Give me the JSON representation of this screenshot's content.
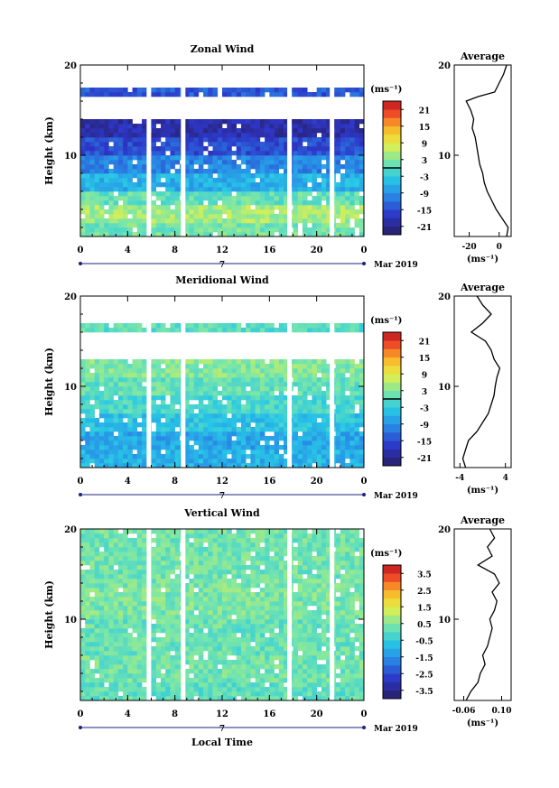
{
  "chart_data": [
    {
      "type": "heatmap",
      "title": "Zonal Wind",
      "ylabel": "Height (km)",
      "xticks": [
        "0",
        "4",
        "8",
        "12",
        "16",
        "20",
        "0"
      ],
      "yticks": [
        "20",
        "10"
      ],
      "xlim": [
        0,
        24
      ],
      "ylim": [
        1,
        20
      ],
      "date_label": "7",
      "month_label": "Mar 2019",
      "colorbar": {
        "unit": "(ms⁻¹)",
        "ticks": [
          "21",
          "15",
          "9",
          "3",
          "-3",
          "-9",
          "-15",
          "-21"
        ],
        "range": [
          -24,
          24
        ],
        "zero_line": true
      },
      "bands": [
        {
          "from": 1,
          "to": 2.5,
          "value": 2
        },
        {
          "from": 2.5,
          "to": 4.5,
          "value": 5
        },
        {
          "from": 4.5,
          "to": 6,
          "value": 1
        },
        {
          "from": 6,
          "to": 8,
          "value": -6
        },
        {
          "from": 8,
          "to": 10,
          "value": -10
        },
        {
          "from": 10,
          "to": 12,
          "value": -15
        },
        {
          "from": 12,
          "to": 14,
          "value": -19
        },
        {
          "from": 16.5,
          "to": 17.5,
          "value": -14
        }
      ],
      "gaps_x": [
        5.8,
        8.7,
        17.7,
        21.3
      ],
      "average": {
        "title": "Average",
        "xticks": [
          "-20",
          "0"
        ],
        "xlim": [
          -30,
          8
        ],
        "xlabel": "(ms⁻¹)",
        "yticks": [
          "20",
          "10"
        ],
        "profile": [
          [
            1,
            5
          ],
          [
            2,
            6
          ],
          [
            3,
            2
          ],
          [
            4,
            -2
          ],
          [
            5,
            -5
          ],
          [
            6,
            -8
          ],
          [
            7,
            -10
          ],
          [
            8,
            -11
          ],
          [
            9,
            -13
          ],
          [
            10,
            -14
          ],
          [
            11,
            -15
          ],
          [
            12,
            -16
          ],
          [
            13,
            -18
          ],
          [
            14,
            -17
          ],
          [
            15,
            -19
          ],
          [
            16,
            -22
          ],
          [
            16.5,
            -14
          ],
          [
            17,
            -3
          ],
          [
            18,
            0
          ],
          [
            19,
            3
          ],
          [
            20,
            5
          ]
        ]
      }
    },
    {
      "type": "heatmap",
      "title": "Meridional Wind",
      "ylabel": "Height (km)",
      "xticks": [
        "0",
        "4",
        "8",
        "12",
        "16",
        "20",
        "0"
      ],
      "yticks": [
        "20",
        "10"
      ],
      "xlim": [
        0,
        24
      ],
      "ylim": [
        1,
        20
      ],
      "date_label": "7",
      "month_label": "Mar 2019",
      "colorbar": {
        "unit": "(ms⁻¹)",
        "ticks": [
          "21",
          "15",
          "9",
          "3",
          "-3",
          "-9",
          "-15",
          "-21"
        ],
        "range": [
          -24,
          24
        ],
        "zero_line": true
      },
      "bands": [
        {
          "from": 1,
          "to": 3,
          "value": -6
        },
        {
          "from": 3,
          "to": 5,
          "value": -7
        },
        {
          "from": 5,
          "to": 7,
          "value": -4
        },
        {
          "from": 7,
          "to": 9,
          "value": -1
        },
        {
          "from": 9,
          "to": 11,
          "value": 1
        },
        {
          "from": 11,
          "to": 13,
          "value": 3
        },
        {
          "from": 16,
          "to": 17,
          "value": 0
        }
      ],
      "gaps_x": [
        5.8,
        8.7,
        17.7,
        21.3
      ],
      "average": {
        "title": "Average",
        "xticks": [
          "-4",
          "4"
        ],
        "xlim": [
          -5,
          5
        ],
        "xlabel": "(ms⁻¹)",
        "yticks": [
          "20",
          "10"
        ],
        "profile": [
          [
            1,
            -3
          ],
          [
            2,
            -3.5
          ],
          [
            3,
            -3
          ],
          [
            4,
            -2.5
          ],
          [
            5,
            -1
          ],
          [
            6,
            0
          ],
          [
            7,
            1
          ],
          [
            8,
            1.5
          ],
          [
            9,
            2
          ],
          [
            10,
            2.2
          ],
          [
            11,
            2.5
          ],
          [
            12,
            3
          ],
          [
            13,
            2
          ],
          [
            14,
            1.5
          ],
          [
            15,
            0.5
          ],
          [
            16,
            -2
          ],
          [
            17,
            0
          ],
          [
            18,
            1.5
          ],
          [
            19,
            0
          ],
          [
            20,
            -1
          ]
        ]
      }
    },
    {
      "type": "heatmap",
      "title": "Vertical Wind",
      "ylabel": "Height (km)",
      "xlabel": "Local Time",
      "xticks": [
        "0",
        "4",
        "8",
        "12",
        "16",
        "20",
        "0"
      ],
      "yticks": [
        "20",
        "10"
      ],
      "xlim": [
        0,
        24
      ],
      "ylim": [
        1,
        20
      ],
      "date_label": "7",
      "month_label": "Mar 2019",
      "colorbar": {
        "unit": "(ms⁻¹)",
        "ticks": [
          "3.5",
          "2.5",
          "1.5",
          "0.5",
          "-0.5",
          "-1.5",
          "-2.5",
          "-3.5"
        ],
        "range": [
          -4,
          4
        ],
        "zero_line": false
      },
      "bands": [
        {
          "from": 1,
          "to": 3,
          "value": 0.1
        },
        {
          "from": 3,
          "to": 6,
          "value": 0.3
        },
        {
          "from": 6,
          "to": 10,
          "value": 0.2
        },
        {
          "from": 10,
          "to": 14,
          "value": 0.4
        },
        {
          "from": 14,
          "to": 20,
          "value": 0.3
        }
      ],
      "gaps_x": [
        5.8,
        8.7,
        17.7,
        21.3
      ],
      "average": {
        "title": "Average",
        "xticks": [
          "-0.06",
          "0.10"
        ],
        "xlim": [
          -0.1,
          0.14
        ],
        "xlabel": "(ms⁻¹)",
        "yticks": [
          "20",
          "10"
        ],
        "profile": [
          [
            1,
            -0.05
          ],
          [
            2,
            -0.03
          ],
          [
            3,
            0
          ],
          [
            4,
            0.01
          ],
          [
            5,
            0.03
          ],
          [
            6,
            0.02
          ],
          [
            7,
            0.04
          ],
          [
            8,
            0.05
          ],
          [
            9,
            0.06
          ],
          [
            10,
            0.05
          ],
          [
            11,
            0.07
          ],
          [
            12,
            0.08
          ],
          [
            13,
            0.06
          ],
          [
            14,
            0.09
          ],
          [
            15,
            0.07
          ],
          [
            16,
            0.0
          ],
          [
            17,
            0.06
          ],
          [
            18,
            0.04
          ],
          [
            19,
            0.07
          ],
          [
            20,
            0.05
          ]
        ]
      }
    }
  ]
}
